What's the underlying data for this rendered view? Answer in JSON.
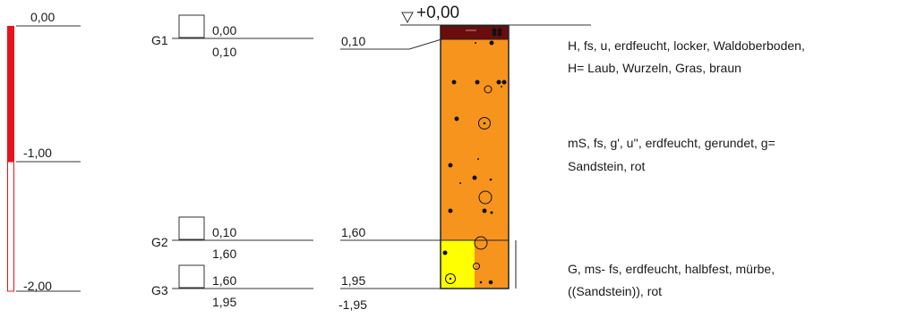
{
  "depth_scale": {
    "labels": [
      "0,00",
      "-1,00",
      "-2,00"
    ],
    "colors": {
      "filled": "#e8141c",
      "outline": "#e8141c"
    }
  },
  "samples": [
    {
      "name": "G1",
      "top": "0,00",
      "bottom": "0,10"
    },
    {
      "name": "G2",
      "top": "0,10",
      "bottom": "1,60"
    },
    {
      "name": "G3",
      "top": "1,60",
      "bottom": "1,95"
    }
  ],
  "profile": {
    "surface_label": "+0,00",
    "layer_boundaries": [
      "0,10",
      "1,60",
      "1,95"
    ],
    "final_depth": "-1,95",
    "layers": [
      {
        "lines": [
          "H, fs, u, erdfeucht, locker, Waldoberboden,",
          "H= Laub, Wurzeln, Gras, braun"
        ],
        "color": "#6b0d0d"
      },
      {
        "lines": [
          "mS, fs, g', u'', erdfeucht, gerundet, g=",
          "Sandstein, rot"
        ],
        "color": "#f7941d"
      },
      {
        "lines": [
          "G, ms- fs, erdfeucht, halbfest, mürbe,",
          "((Sandstein)), rot"
        ],
        "color": "#ffff00"
      }
    ]
  }
}
